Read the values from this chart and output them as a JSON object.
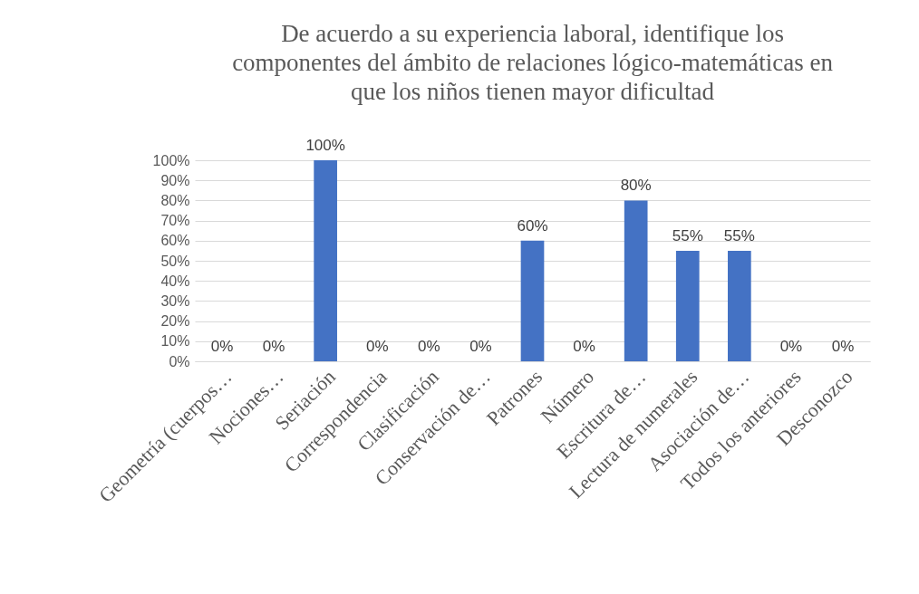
{
  "chart_data": {
    "type": "bar",
    "title": "De acuerdo a su experiencia laboral, identifique los\ncomponentes del ámbito de relaciones lógico-matemáticas en\nque los niños tienen mayor dificultad",
    "categories": [
      "Geometría (cuerpos…",
      "Nociones…",
      "Seriación",
      "Correspondencia",
      "Clasificación",
      "Conservación de…",
      "Patrones",
      "Número",
      "Escritura de…",
      "Lectura de numerales",
      "Asociación de…",
      "Todos los anteriores",
      "Desconozco"
    ],
    "values": [
      0,
      0,
      100,
      0,
      0,
      0,
      60,
      0,
      80,
      55,
      55,
      0,
      0
    ],
    "value_labels": [
      "0%",
      "0%",
      "100%",
      "0%",
      "0%",
      "0%",
      "60%",
      "0%",
      "80%",
      "55%",
      "55%",
      "0%",
      "0%"
    ],
    "color": "#4472c4",
    "ylim": [
      0,
      100
    ],
    "yticks": [
      {
        "value": 0,
        "label": "0%"
      },
      {
        "value": 10,
        "label": "10%"
      },
      {
        "value": 20,
        "label": "20%"
      },
      {
        "value": 30,
        "label": "30%"
      },
      {
        "value": 40,
        "label": "40%"
      },
      {
        "value": 50,
        "label": "50%"
      },
      {
        "value": 60,
        "label": "60%"
      },
      {
        "value": 70,
        "label": "70%"
      },
      {
        "value": 80,
        "label": "80%"
      },
      {
        "value": 90,
        "label": "90%"
      },
      {
        "value": 100,
        "label": "100%"
      }
    ],
    "grid": "y"
  }
}
